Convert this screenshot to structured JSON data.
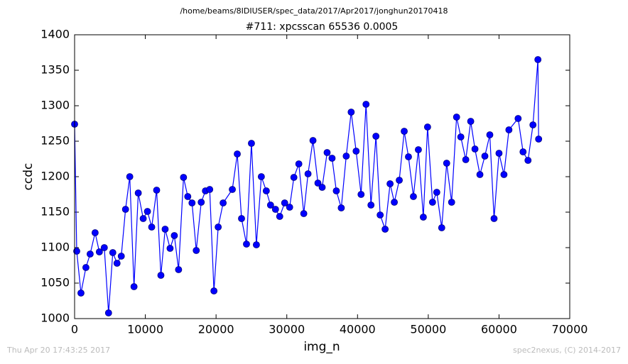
{
  "chart_data": {
    "type": "line",
    "suptitle": "/home/beams/8IDIUSER/spec_data/2017/Apr2017/jonghun20170418",
    "title": "#711: xpcsscan 65536 0.0005",
    "x_label": "img_n",
    "y_label": "ccdc",
    "footer_left": "Thu Apr 20 17:43:25 2017",
    "footer_right": "spec2nexus, (C) 2014-2017",
    "x": [
      0,
      300,
      900,
      1600,
      2200,
      2900,
      3500,
      4200,
      4800,
      5400,
      6000,
      6600,
      7200,
      7800,
      8400,
      9000,
      9700,
      10300,
      10900,
      11600,
      12200,
      12800,
      13500,
      14100,
      14700,
      15400,
      16000,
      16600,
      17200,
      17900,
      18500,
      19100,
      19700,
      20300,
      21000,
      22300,
      23000,
      23600,
      24300,
      25000,
      25700,
      26400,
      27100,
      27700,
      28400,
      29000,
      29700,
      30400,
      31000,
      31700,
      32400,
      33000,
      33700,
      34400,
      35000,
      35700,
      36400,
      37000,
      37700,
      38400,
      39100,
      39800,
      40500,
      41200,
      41900,
      42600,
      43200,
      43900,
      44600,
      45200,
      45900,
      46600,
      47200,
      47900,
      48600,
      49300,
      49900,
      50600,
      51200,
      51900,
      52600,
      53300,
      54000,
      54600,
      55300,
      56000,
      56600,
      57300,
      58000,
      58700,
      59300,
      60000,
      60700,
      61400,
      62700,
      63400,
      64100,
      64800,
      65500,
      65600
    ],
    "series": [
      {
        "name": "ccdc",
        "color": "#0000ff",
        "marker_edge": "#000080",
        "values": [
          1274,
          1095,
          1036,
          1072,
          1091,
          1121,
          1094,
          1100,
          1008,
          1093,
          1078,
          1088,
          1154,
          1200,
          1045,
          1177,
          1141,
          1151,
          1129,
          1181,
          1061,
          1126,
          1099,
          1117,
          1069,
          1199,
          1172,
          1163,
          1096,
          1164,
          1180,
          1182,
          1039,
          1129,
          1163,
          1182,
          1232,
          1141,
          1105,
          1247,
          1104,
          1200,
          1180,
          1160,
          1154,
          1144,
          1163,
          1157,
          1199,
          1218,
          1148,
          1204,
          1251,
          1191,
          1185,
          1234,
          1226,
          1180,
          1156,
          1229,
          1291,
          1236,
          1175,
          1302,
          1160,
          1257,
          1146,
          1126,
          1190,
          1164,
          1195,
          1264,
          1228,
          1172,
          1238,
          1143,
          1270,
          1164,
          1178,
          1128,
          1219,
          1164,
          1284,
          1256,
          1224,
          1278,
          1239,
          1203,
          1229,
          1259,
          1141,
          1233,
          1203,
          1266,
          1282,
          1235,
          1223,
          1273,
          1365,
          1253
        ]
      }
    ],
    "xlim": [
      0,
      70000
    ],
    "xticks": [
      0,
      10000,
      20000,
      30000,
      40000,
      50000,
      60000,
      70000
    ],
    "ylim": [
      1000,
      1400
    ],
    "yticks": [
      1000,
      1050,
      1100,
      1150,
      1200,
      1250,
      1300,
      1350,
      1400
    ]
  }
}
